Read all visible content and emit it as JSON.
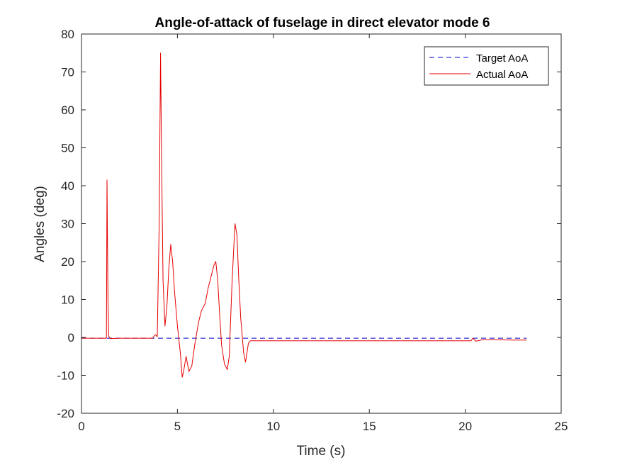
{
  "chart_data": {
    "type": "line",
    "title": "Angle-of-attack of fuselage in direct elevator mode 6",
    "xlabel": "Time (s)",
    "ylabel": "Angles (deg)",
    "xlim": [
      0,
      25
    ],
    "ylim": [
      -20,
      80
    ],
    "xticks": [
      0,
      5,
      10,
      15,
      20,
      25
    ],
    "yticks": [
      -20,
      -10,
      0,
      10,
      20,
      30,
      40,
      50,
      60,
      70,
      80
    ],
    "grid": false,
    "legend_position": "top-right",
    "series": [
      {
        "name": "Target AoA",
        "color": "#0000cc",
        "style": "dashed",
        "points": [
          [
            0,
            -0.2
          ],
          [
            23.2,
            -0.2
          ]
        ]
      },
      {
        "name": "Actual AoA",
        "color": "#e60000",
        "style": "solid",
        "points": [
          [
            0,
            -0.2
          ],
          [
            1.3,
            -0.2
          ],
          [
            1.33,
            41.5
          ],
          [
            1.38,
            10
          ],
          [
            1.42,
            0.3
          ],
          [
            1.5,
            -0.3
          ],
          [
            2,
            -0.2
          ],
          [
            3,
            -0.2
          ],
          [
            3.7,
            -0.2
          ],
          [
            3.85,
            0.7
          ],
          [
            3.95,
            0.2
          ],
          [
            4.05,
            30
          ],
          [
            4.12,
            75
          ],
          [
            4.18,
            45
          ],
          [
            4.25,
            15
          ],
          [
            4.35,
            3
          ],
          [
            4.45,
            8
          ],
          [
            4.55,
            18
          ],
          [
            4.65,
            24.5
          ],
          [
            4.75,
            20
          ],
          [
            4.85,
            12
          ],
          [
            5,
            3
          ],
          [
            5.15,
            -4
          ],
          [
            5.25,
            -10.5
          ],
          [
            5.32,
            -9
          ],
          [
            5.45,
            -5
          ],
          [
            5.6,
            -9
          ],
          [
            5.75,
            -7.5
          ],
          [
            5.9,
            -2
          ],
          [
            6.1,
            4
          ],
          [
            6.25,
            7
          ],
          [
            6.45,
            9
          ],
          [
            6.6,
            13
          ],
          [
            6.75,
            16
          ],
          [
            6.9,
            19
          ],
          [
            7,
            20
          ],
          [
            7.1,
            15
          ],
          [
            7.2,
            6
          ],
          [
            7.3,
            -2
          ],
          [
            7.45,
            -7
          ],
          [
            7.6,
            -8.5
          ],
          [
            7.7,
            -5
          ],
          [
            7.85,
            15
          ],
          [
            8,
            30
          ],
          [
            8.1,
            27
          ],
          [
            8.2,
            15
          ],
          [
            8.3,
            5
          ],
          [
            8.45,
            -4
          ],
          [
            8.55,
            -6.5
          ],
          [
            8.7,
            -1.5
          ],
          [
            8.8,
            -0.9
          ],
          [
            10,
            -0.9
          ],
          [
            15,
            -0.9
          ],
          [
            20,
            -0.9
          ],
          [
            20.3,
            -0.9
          ],
          [
            20.4,
            -0.2
          ],
          [
            20.55,
            -1
          ],
          [
            20.9,
            -0.6
          ],
          [
            21.5,
            -0.6
          ],
          [
            22.5,
            -0.7
          ],
          [
            23.2,
            -0.7
          ]
        ]
      }
    ]
  }
}
